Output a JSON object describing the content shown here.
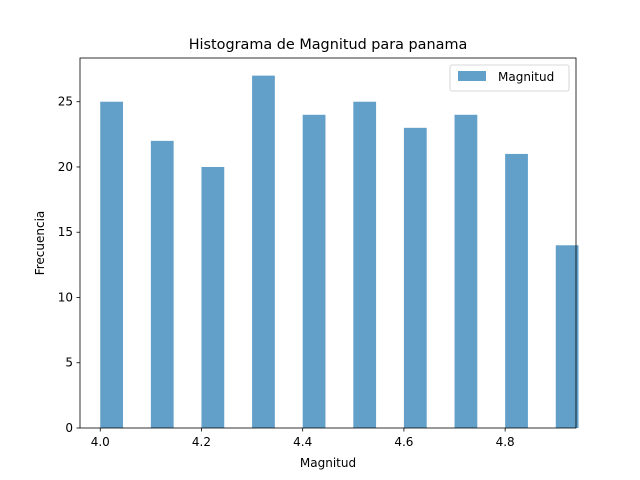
{
  "chart_data": {
    "type": "bar",
    "title": "Histograma de Magnitud para panama",
    "xlabel": "Magnitud",
    "ylabel": "Frecuencia",
    "x": [
      4.0,
      4.1,
      4.2,
      4.3,
      4.4,
      4.5,
      4.6,
      4.7,
      4.8,
      4.9
    ],
    "values": [
      25,
      22,
      20,
      27,
      24,
      25,
      23,
      24,
      21,
      14
    ],
    "bar_width": 0.045,
    "xlim": [
      3.96,
      4.94
    ],
    "ylim": [
      0,
      28.35
    ],
    "xticks": [
      4.0,
      4.2,
      4.4,
      4.6,
      4.8
    ],
    "xtick_labels": [
      "4.0",
      "4.2",
      "4.4",
      "4.6",
      "4.8"
    ],
    "yticks": [
      0,
      5,
      10,
      15,
      20,
      25
    ],
    "ytick_labels": [
      "0",
      "5",
      "10",
      "15",
      "20",
      "25"
    ],
    "series": [
      {
        "name": "Magnitud",
        "color": "#1f77b4",
        "alpha": 0.7
      }
    ],
    "legend": {
      "placement": "upper right",
      "entries": [
        "Magnitud"
      ]
    },
    "grid": false
  }
}
